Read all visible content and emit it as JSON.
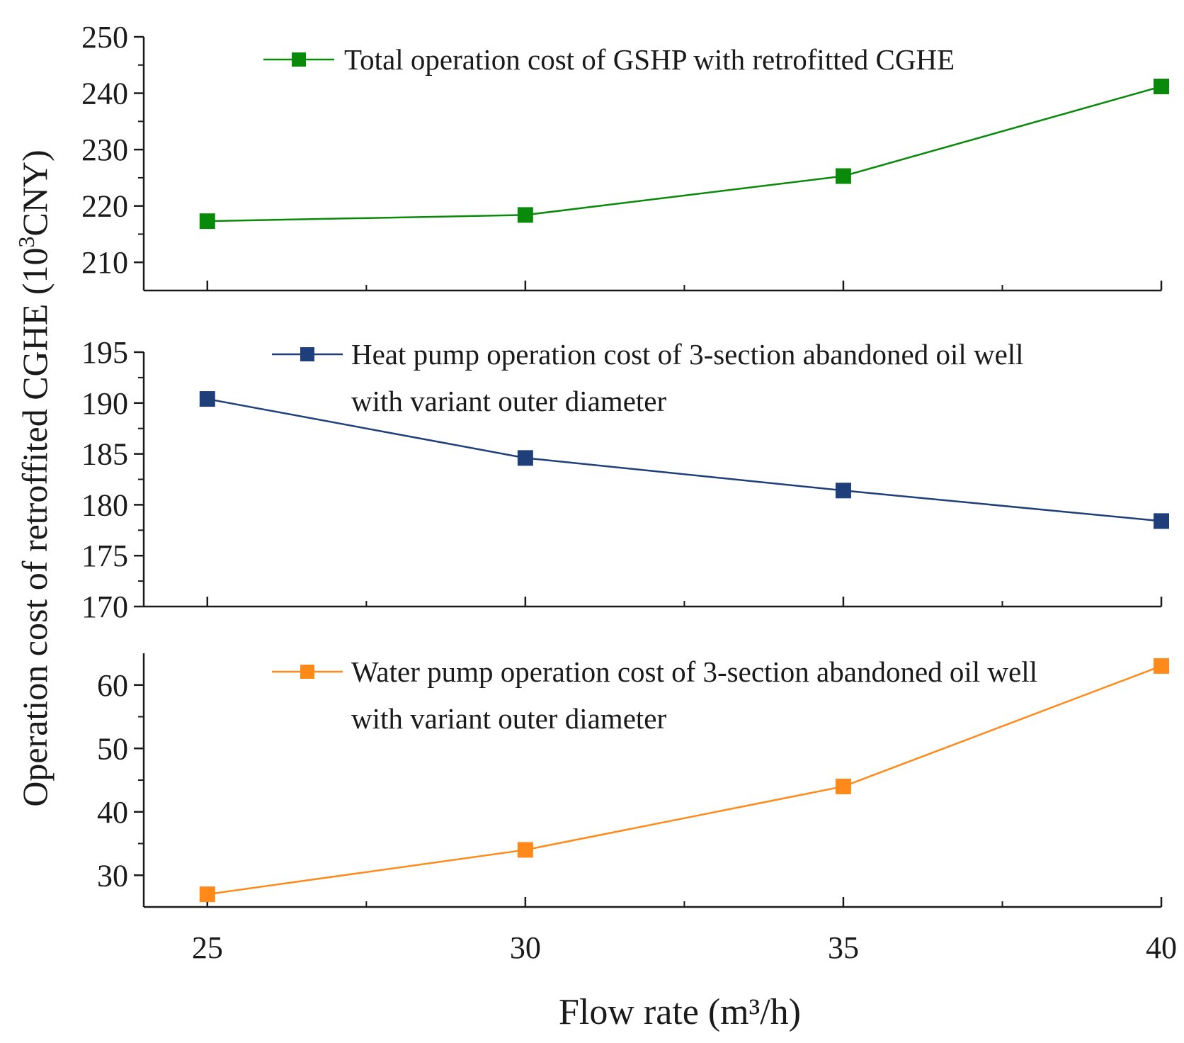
{
  "chart_data": {
    "type": "line",
    "xlabel": "Flow rate (m³/h)",
    "ylabel": {
      "text": "Operation cost of  retroffited CGHE (10",
      "sup": "3",
      "suffix": "CNY)"
    },
    "x_ticks": [
      "25",
      "30",
      "35",
      "40"
    ],
    "x": [
      25,
      30,
      35,
      40
    ],
    "xlim": [
      24,
      40
    ],
    "panels": [
      {
        "name": "total",
        "ylim": [
          205,
          250
        ],
        "y_ticks": [
          210,
          220,
          230,
          240,
          250
        ],
        "y_tick_labels": [
          "210",
          "220",
          "230",
          "240",
          "250"
        ],
        "series": {
          "name": "Total operation cost of GSHP with retrofitted CGHE",
          "legend_lines": [
            "Total operation cost of GSHP with retrofitted CGHE"
          ],
          "color": "#0a8a0a",
          "values": [
            217.3,
            218.4,
            225.3,
            241.2
          ]
        }
      },
      {
        "name": "heat-pump",
        "ylim": [
          170,
          195
        ],
        "y_ticks": [
          170,
          175,
          180,
          185,
          190,
          195
        ],
        "y_tick_labels": [
          "170",
          "175",
          "180",
          "185",
          "190",
          "195"
        ],
        "series": {
          "name": "Heat pump operation cost of 3-section abandoned oil well with variant outer diameter",
          "legend_lines": [
            "Heat pump operation cost of 3-section abandoned oil well",
            "with variant outer diameter"
          ],
          "color": "#1f3f7a",
          "values": [
            190.4,
            184.6,
            181.4,
            178.4
          ]
        }
      },
      {
        "name": "water-pump",
        "ylim": [
          25,
          65
        ],
        "y_ticks": [
          30,
          40,
          50,
          60
        ],
        "y_tick_labels": [
          "30",
          "40",
          "50",
          "60"
        ],
        "series": {
          "name": "Water pump operation cost of 3-section abandoned oil well with variant outer diameter",
          "legend_lines": [
            "Water pump operation cost of 3-section abandoned oil well",
            "with variant outer diameter"
          ],
          "color": "#ff8a1a",
          "values": [
            27.0,
            34.0,
            44.0,
            63.0
          ]
        }
      }
    ]
  }
}
